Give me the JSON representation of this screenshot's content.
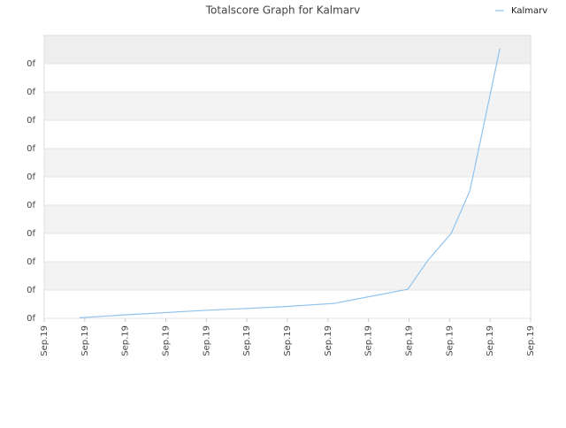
{
  "chart_data": {
    "type": "line",
    "title": "Totalscore Graph for Kalmarv",
    "x": [
      0.87,
      1.96,
      3.93,
      5.89,
      7.16,
      8.97,
      9.47,
      10.04,
      10.5,
      11.24
    ],
    "series": [
      {
        "name": "Kalmarv",
        "color": "#90c3ee",
        "values": [
          0.02,
          0.12,
          0.28,
          0.41,
          0.53,
          1.03,
          2.06,
          3.0,
          4.5,
          9.53
        ]
      }
    ],
    "xlim": [
      0,
      12
    ],
    "xticks": [
      {
        "value": 0,
        "label": "Sep.19"
      },
      {
        "value": 1,
        "label": "Sep.19"
      },
      {
        "value": 2,
        "label": "Sep.19"
      },
      {
        "value": 3,
        "label": "Sep.19"
      },
      {
        "value": 4,
        "label": "Sep.19"
      },
      {
        "value": 5,
        "label": "Sep.19"
      },
      {
        "value": 6,
        "label": "Sep.19"
      },
      {
        "value": 7,
        "label": "Sep.19"
      },
      {
        "value": 8,
        "label": "Sep.19"
      },
      {
        "value": 9,
        "label": "Sep.19"
      },
      {
        "value": 10,
        "label": "Sep.19"
      },
      {
        "value": 11,
        "label": "Sep.19"
      },
      {
        "value": 12,
        "label": "Sep.19"
      }
    ],
    "ylim": [
      0,
      10
    ],
    "yticks": [
      {
        "value": 0,
        "label": "0f"
      },
      {
        "value": 1,
        "label": "0f"
      },
      {
        "value": 2,
        "label": "0f"
      },
      {
        "value": 3,
        "label": "0f"
      },
      {
        "value": 4,
        "label": "0f"
      },
      {
        "value": 5,
        "label": "0f"
      },
      {
        "value": 6,
        "label": "0f"
      },
      {
        "value": 7,
        "label": "0f"
      },
      {
        "value": 8,
        "label": "0f"
      },
      {
        "value": 9,
        "label": "0f"
      }
    ],
    "grid": true,
    "legend": "top-right"
  }
}
